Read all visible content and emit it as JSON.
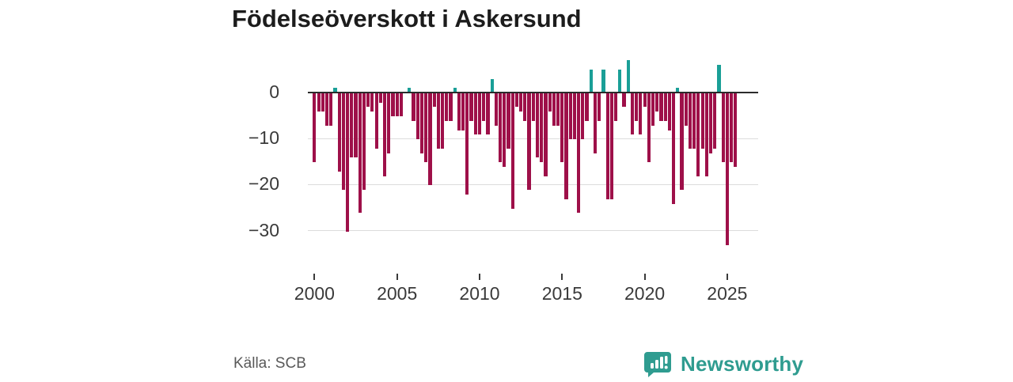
{
  "title": "Födelseöverskott i Askersund",
  "source": "Källa: SCB",
  "brand": {
    "name": "Newsworthy",
    "logo_icon": "speech-bubble-bar-chart-icon"
  },
  "colors": {
    "bar_negative": "#9e1049",
    "bar_positive": "#1a9f97",
    "axis_line": "#2b2b2b",
    "gridline": "#dcdcdc",
    "tick_text": "#3a3a3a",
    "title_text": "#1c1c1c",
    "source_text": "#595959",
    "brand_teal": "#2f9c90"
  },
  "chart_data": {
    "type": "bar",
    "title": "Födelseöverskott i Askersund",
    "xlabel": "",
    "ylabel": "",
    "period": "quarterly",
    "start": "2000Q1",
    "end": "2025Q3",
    "values": [
      -15,
      -4,
      -4,
      -7,
      -7,
      1,
      -17,
      -21,
      -30,
      -14,
      -14,
      -26,
      -21,
      -3,
      -4,
      -12,
      -2,
      -18,
      -13,
      -5,
      -5,
      -5,
      0,
      1,
      -6,
      -10,
      -13,
      -15,
      -20,
      -3,
      -12,
      -12,
      -6,
      -6,
      1,
      -8,
      -8,
      -22,
      -6,
      -9,
      -9,
      -6,
      -9,
      3,
      -7,
      -15,
      -16,
      -12,
      -25,
      -3,
      -4,
      -6,
      -21,
      -6,
      -14,
      -15,
      -18,
      -4,
      -7,
      -7,
      -15,
      -23,
      -10,
      -10,
      -26,
      -10,
      -6,
      5,
      -13,
      -6,
      5,
      -23,
      -23,
      -6,
      5,
      -3,
      7,
      -9,
      -6,
      -9,
      -3,
      -15,
      -7,
      -4,
      -6,
      -6,
      -8,
      -24,
      1,
      -21,
      -7,
      -12,
      -12,
      -18,
      -12,
      -18,
      -13,
      -12,
      6,
      -15,
      -33,
      -15,
      -16
    ],
    "x_tick_years": [
      2000,
      2005,
      2010,
      2015,
      2020,
      2025
    ],
    "y_ticks": [
      0,
      -10,
      -20,
      -30
    ],
    "y_tick_labels": [
      "0",
      "−10",
      "−20",
      "−30"
    ],
    "ylim": [
      -35,
      8
    ],
    "grid": "horizontal",
    "legend": "none",
    "positive_color_meaning": "surplus",
    "negative_color_meaning": "deficit"
  }
}
